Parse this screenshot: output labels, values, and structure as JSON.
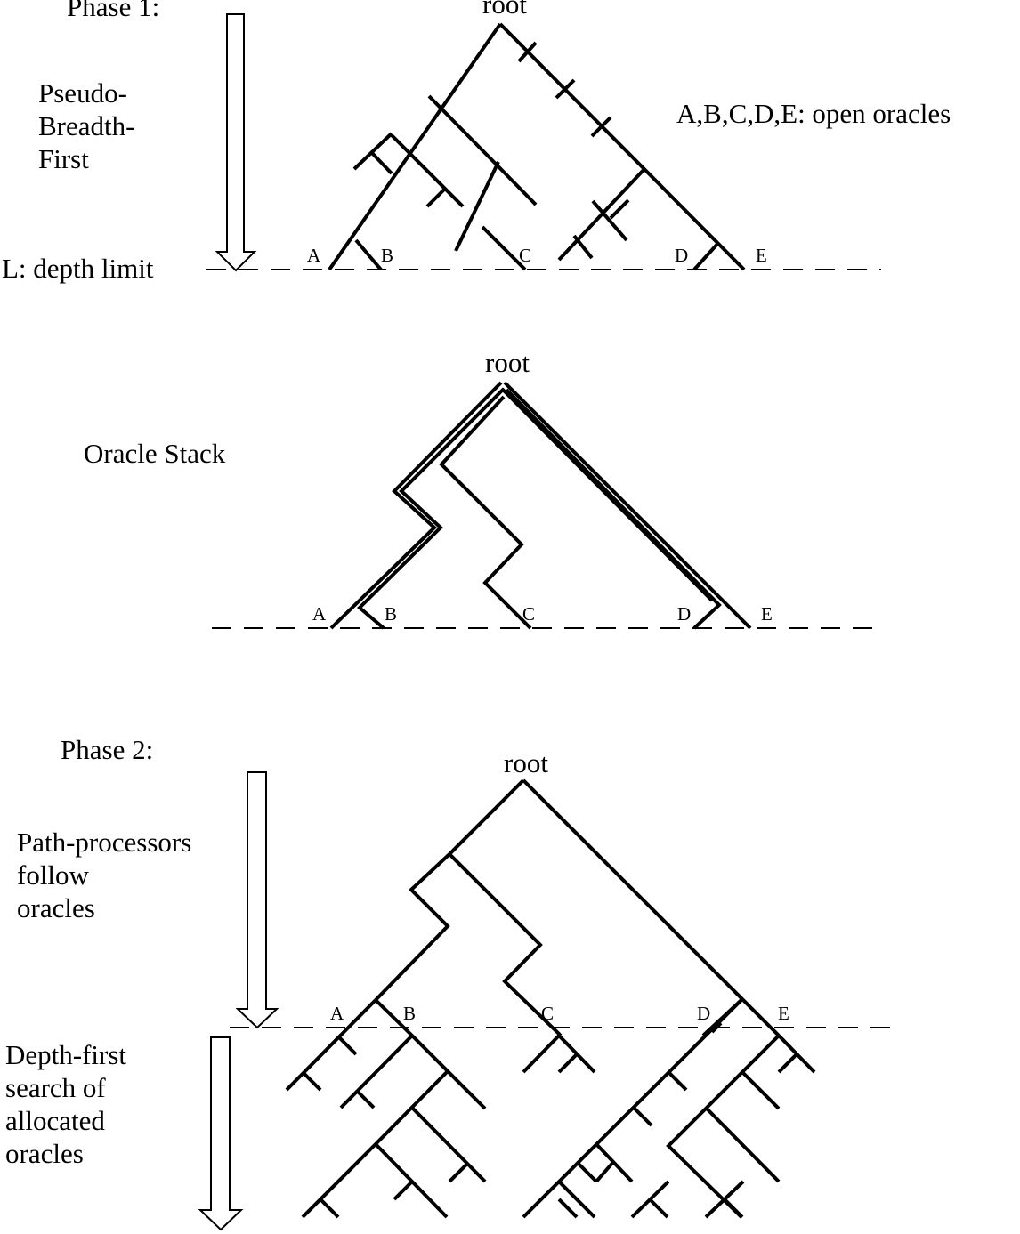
{
  "phase1": {
    "title": "Phase 1:",
    "root": "root",
    "method": [
      "Pseudo-",
      "Breadth-",
      "First"
    ],
    "legend": "A,B,C,D,E: open oracles",
    "depth_limit": "L: depth limit",
    "leaves": [
      "A",
      "B",
      "C",
      "D",
      "E"
    ]
  },
  "stack": {
    "title": "Oracle Stack",
    "root": "root",
    "leaves": [
      "A",
      "B",
      "C",
      "D",
      "E"
    ]
  },
  "phase2": {
    "title": "Phase 2:",
    "root": "root",
    "method": [
      "Path-processors",
      "follow",
      "oracles"
    ],
    "search": [
      "Depth-first",
      "search of",
      "allocated",
      "oracles"
    ],
    "leaves": [
      "A",
      "B",
      "C",
      "D",
      "E"
    ]
  }
}
